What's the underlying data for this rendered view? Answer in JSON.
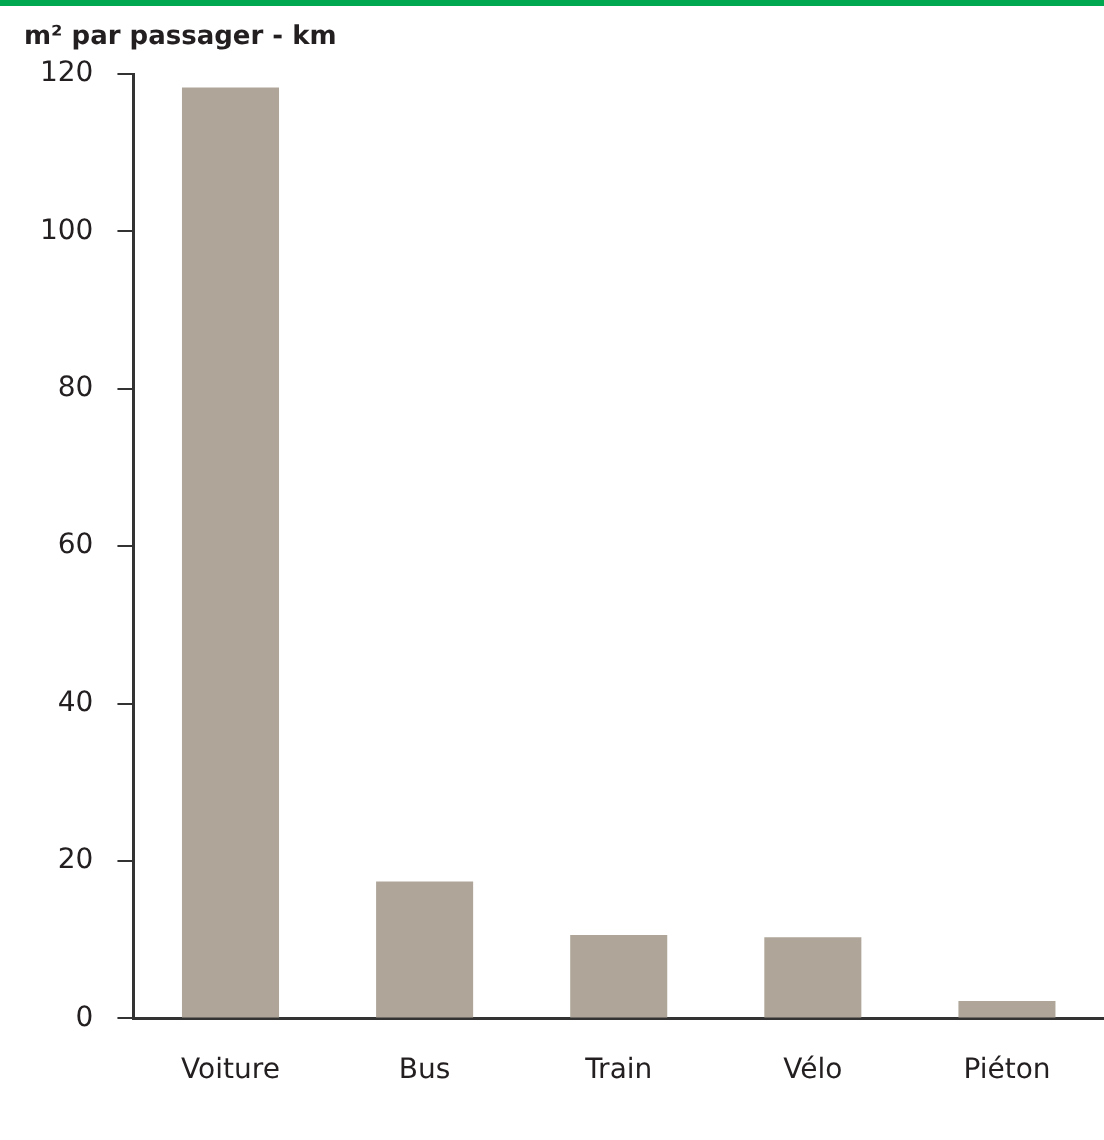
{
  "chart_data": {
    "type": "bar",
    "ylabel": "m² par passager - km",
    "categories": [
      "Voiture",
      "Bus",
      "Train",
      "Vélo",
      "Piéton"
    ],
    "values": [
      118.3,
      17.4,
      10.6,
      10.3,
      2.2
    ],
    "color": "#afa699",
    "ylim": [
      0,
      120
    ],
    "yticks": [
      0,
      20,
      40,
      60,
      80,
      100,
      120
    ],
    "grid": false,
    "legend": false
  }
}
